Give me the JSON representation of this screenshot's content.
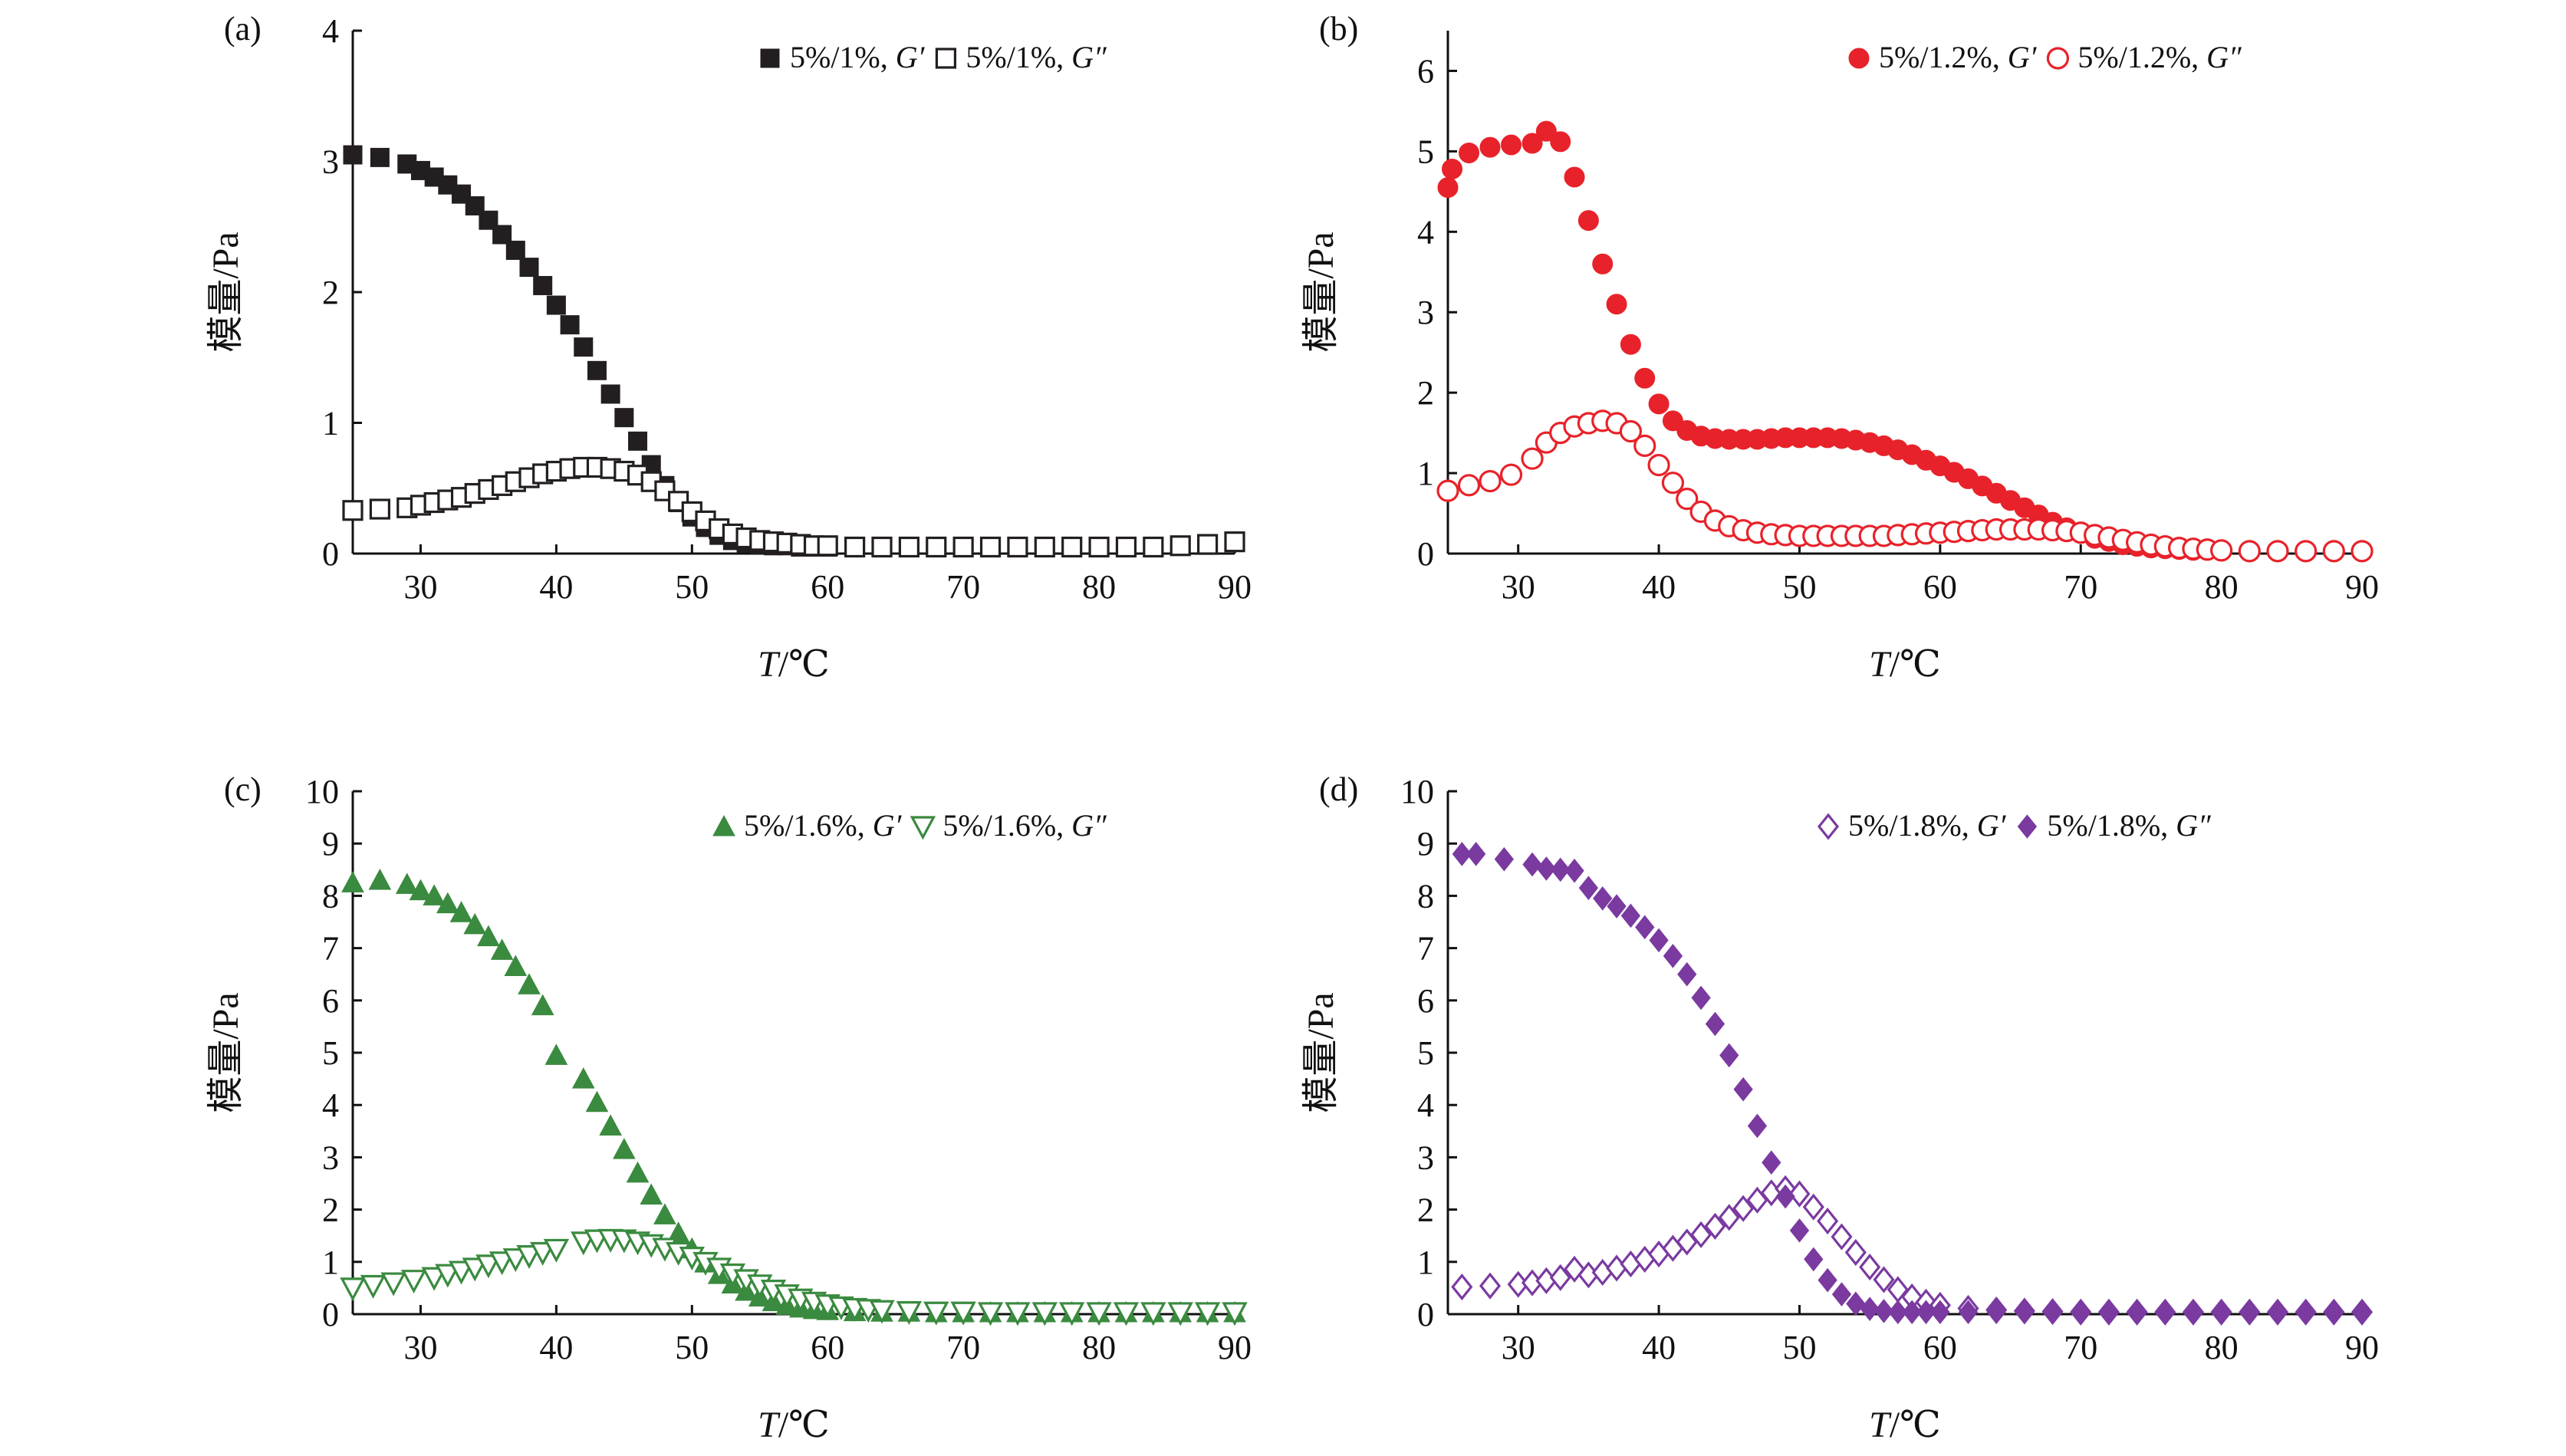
{
  "chart_data": [
    {
      "id": "a",
      "type": "scatter",
      "panel_label": "(a)",
      "xlabel": "T/℃",
      "ylabel": "模量/Pa",
      "xlim": [
        25,
        90
      ],
      "ylim": [
        0,
        4
      ],
      "xticks": [
        30,
        40,
        50,
        60,
        70,
        80,
        90
      ],
      "yticks": [
        0,
        1,
        2,
        3,
        4
      ],
      "grid": false,
      "legend_position": "top-right",
      "series": [
        {
          "name": "5%/1%, G′",
          "color": "#231f20",
          "marker": "square-filled",
          "x": [
            25,
            27,
            29,
            30,
            31,
            32,
            33,
            34,
            35,
            36,
            37,
            38,
            39,
            40,
            41,
            42,
            43,
            44,
            45,
            46,
            47,
            48,
            49,
            50,
            51,
            52,
            53,
            54,
            55,
            56,
            57,
            58,
            59,
            60,
            62,
            64,
            66,
            68,
            70,
            72,
            74,
            76,
            78,
            80,
            82,
            84,
            86,
            88,
            90
          ],
          "y": [
            3.05,
            3.03,
            2.98,
            2.93,
            2.88,
            2.82,
            2.75,
            2.66,
            2.55,
            2.44,
            2.32,
            2.19,
            2.05,
            1.9,
            1.75,
            1.58,
            1.4,
            1.22,
            1.04,
            0.86,
            0.68,
            0.52,
            0.39,
            0.28,
            0.2,
            0.14,
            0.1,
            0.08,
            0.07,
            0.06,
            0.06,
            0.05,
            0.05,
            0.05,
            0.05,
            0.05,
            0.05,
            0.05,
            0.05,
            0.05,
            0.05,
            0.05,
            0.05,
            0.05,
            0.05,
            0.05,
            0.06,
            0.07,
            0.09
          ]
        },
        {
          "name": "5%/1%, G″",
          "color": "#231f20",
          "marker": "square-open",
          "x": [
            25,
            27,
            29,
            30,
            31,
            32,
            33,
            34,
            35,
            36,
            37,
            38,
            39,
            40,
            41,
            42,
            43,
            44,
            45,
            46,
            47,
            48,
            49,
            50,
            51,
            52,
            53,
            54,
            55,
            56,
            57,
            58,
            59,
            60,
            62,
            64,
            66,
            68,
            70,
            72,
            74,
            76,
            78,
            80,
            82,
            84,
            86,
            88,
            90
          ],
          "y": [
            0.33,
            0.34,
            0.35,
            0.37,
            0.39,
            0.41,
            0.43,
            0.46,
            0.49,
            0.52,
            0.55,
            0.58,
            0.61,
            0.63,
            0.65,
            0.66,
            0.66,
            0.65,
            0.63,
            0.6,
            0.55,
            0.48,
            0.4,
            0.32,
            0.25,
            0.19,
            0.15,
            0.12,
            0.1,
            0.09,
            0.08,
            0.07,
            0.06,
            0.06,
            0.05,
            0.05,
            0.05,
            0.05,
            0.05,
            0.05,
            0.05,
            0.05,
            0.05,
            0.05,
            0.05,
            0.05,
            0.06,
            0.07,
            0.09
          ]
        }
      ]
    },
    {
      "id": "b",
      "type": "scatter",
      "panel_label": "(b)",
      "xlabel": "T/℃",
      "ylabel": "模量/Pa",
      "xlim": [
        25,
        90
      ],
      "ylim": [
        0,
        6.5
      ],
      "xticks": [
        30,
        40,
        50,
        60,
        70,
        80,
        90
      ],
      "yticks": [
        0,
        1,
        2,
        3,
        4,
        5,
        6
      ],
      "grid": false,
      "legend_position": "top-right",
      "series": [
        {
          "name": "5%/1.2%, G′",
          "color": "#e8222a",
          "marker": "circle-filled",
          "x": [
            25,
            25.3,
            26.5,
            28,
            29.5,
            31,
            32,
            33,
            34,
            35,
            36,
            37,
            38,
            39,
            40,
            41,
            42,
            43,
            44,
            45,
            46,
            47,
            48,
            49,
            50,
            51,
            52,
            53,
            54,
            55,
            56,
            57,
            58,
            59,
            60,
            61,
            62,
            63,
            64,
            65,
            66,
            67,
            68,
            69,
            70,
            71,
            72,
            73,
            74,
            75,
            76,
            77,
            78,
            79,
            80,
            82,
            84,
            86,
            88,
            90
          ],
          "y": [
            4.55,
            4.78,
            4.98,
            5.05,
            5.08,
            5.1,
            5.25,
            5.12,
            4.68,
            4.14,
            3.6,
            3.1,
            2.6,
            2.18,
            1.86,
            1.65,
            1.53,
            1.46,
            1.43,
            1.42,
            1.42,
            1.42,
            1.43,
            1.44,
            1.44,
            1.44,
            1.44,
            1.43,
            1.41,
            1.38,
            1.34,
            1.29,
            1.23,
            1.16,
            1.09,
            1.01,
            0.93,
            0.84,
            0.75,
            0.66,
            0.57,
            0.48,
            0.39,
            0.32,
            0.25,
            0.19,
            0.15,
            0.11,
            0.09,
            0.07,
            0.06,
            0.05,
            0.04,
            0.04,
            0.03,
            0.03,
            0.03,
            0.03,
            0.03,
            0.03
          ]
        },
        {
          "name": "5%/1.2%, G″",
          "color": "#e8222a",
          "marker": "circle-open",
          "x": [
            25,
            26.5,
            28,
            29.5,
            31,
            32,
            33,
            34,
            35,
            36,
            37,
            38,
            39,
            40,
            41,
            42,
            43,
            44,
            45,
            46,
            47,
            48,
            49,
            50,
            51,
            52,
            53,
            54,
            55,
            56,
            57,
            58,
            59,
            60,
            61,
            62,
            63,
            64,
            65,
            66,
            67,
            68,
            69,
            70,
            71,
            72,
            73,
            74,
            75,
            76,
            77,
            78,
            79,
            80,
            82,
            84,
            86,
            88,
            90
          ],
          "y": [
            0.78,
            0.85,
            0.9,
            0.98,
            1.18,
            1.38,
            1.5,
            1.58,
            1.62,
            1.65,
            1.62,
            1.52,
            1.34,
            1.1,
            0.88,
            0.68,
            0.52,
            0.41,
            0.34,
            0.29,
            0.26,
            0.24,
            0.23,
            0.22,
            0.22,
            0.22,
            0.22,
            0.22,
            0.22,
            0.22,
            0.23,
            0.24,
            0.25,
            0.26,
            0.27,
            0.28,
            0.29,
            0.3,
            0.3,
            0.3,
            0.3,
            0.29,
            0.28,
            0.26,
            0.23,
            0.2,
            0.17,
            0.14,
            0.11,
            0.09,
            0.07,
            0.06,
            0.05,
            0.04,
            0.03,
            0.03,
            0.03,
            0.03,
            0.03
          ]
        }
      ]
    },
    {
      "id": "c",
      "type": "scatter",
      "panel_label": "(c)",
      "xlabel": "T/℃",
      "ylabel": "模量/Pa",
      "xlim": [
        25,
        90
      ],
      "ylim": [
        0,
        10
      ],
      "xticks": [
        30,
        40,
        50,
        60,
        70,
        80,
        90
      ],
      "yticks": [
        0,
        1,
        2,
        3,
        4,
        5,
        6,
        7,
        8,
        9,
        10
      ],
      "grid": false,
      "legend_position": "top-right",
      "series": [
        {
          "name": "5%/1.6%, G′",
          "color": "#3a8a3f",
          "marker": "triangle-up-filled",
          "x": [
            25,
            27,
            29,
            30,
            31,
            32,
            33,
            34,
            35,
            36,
            37,
            38,
            39,
            40,
            42,
            43,
            44,
            45,
            46,
            47,
            48,
            49,
            50,
            51,
            52,
            53,
            54,
            55,
            56,
            57,
            58,
            59,
            60,
            62,
            64,
            66,
            68,
            70,
            72,
            74,
            76,
            78,
            80,
            82,
            84,
            86,
            88,
            90
          ],
          "y": [
            8.25,
            8.3,
            8.22,
            8.1,
            8.0,
            7.85,
            7.68,
            7.45,
            7.22,
            6.96,
            6.65,
            6.3,
            5.9,
            4.95,
            4.5,
            4.05,
            3.6,
            3.15,
            2.7,
            2.28,
            1.9,
            1.55,
            1.25,
            0.98,
            0.76,
            0.58,
            0.44,
            0.33,
            0.24,
            0.17,
            0.12,
            0.09,
            0.07,
            0.05,
            0.04,
            0.04,
            0.03,
            0.03,
            0.03,
            0.03,
            0.03,
            0.03,
            0.03,
            0.03,
            0.03,
            0.03,
            0.03,
            0.03
          ]
        },
        {
          "name": "5%/1.6%, G″",
          "color": "#3a8a3f",
          "marker": "triangle-down-open",
          "x": [
            25,
            26.5,
            28,
            29.5,
            31,
            32,
            33,
            34,
            35,
            36,
            37,
            38,
            39,
            40,
            42,
            43,
            44,
            45,
            46,
            47,
            48,
            49,
            50,
            51,
            52,
            53,
            54,
            55,
            56,
            57,
            58,
            59,
            60,
            61,
            62,
            63,
            64,
            66,
            68,
            70,
            72,
            74,
            76,
            78,
            80,
            82,
            84,
            86,
            88,
            90
          ],
          "y": [
            0.5,
            0.55,
            0.6,
            0.65,
            0.7,
            0.76,
            0.82,
            0.88,
            0.94,
            1.0,
            1.06,
            1.12,
            1.18,
            1.24,
            1.38,
            1.42,
            1.43,
            1.42,
            1.38,
            1.33,
            1.26,
            1.18,
            1.09,
            0.99,
            0.88,
            0.77,
            0.66,
            0.56,
            0.46,
            0.37,
            0.29,
            0.23,
            0.18,
            0.14,
            0.11,
            0.09,
            0.07,
            0.05,
            0.04,
            0.04,
            0.03,
            0.03,
            0.03,
            0.03,
            0.03,
            0.03,
            0.03,
            0.03,
            0.03,
            0.03
          ]
        }
      ]
    },
    {
      "id": "d",
      "type": "scatter",
      "panel_label": "(d)",
      "xlabel": "T/℃",
      "ylabel": "模量/Pa",
      "xlim": [
        25,
        90
      ],
      "ylim": [
        0,
        10
      ],
      "xticks": [
        30,
        40,
        50,
        60,
        70,
        80,
        90
      ],
      "yticks": [
        0,
        1,
        2,
        3,
        4,
        5,
        6,
        7,
        8,
        9,
        10
      ],
      "grid": false,
      "legend_position": "top-right",
      "series": [
        {
          "name": "5%/1.8%, G′",
          "color": "#7a3aa0",
          "marker": "diamond-open",
          "x": [
            26,
            28,
            30,
            31,
            32,
            33,
            34,
            35,
            36,
            37,
            38,
            39,
            40,
            41,
            42,
            43,
            44,
            45,
            46,
            47,
            48,
            49,
            50,
            51,
            52,
            53,
            54,
            55,
            56,
            57,
            58,
            59,
            60,
            62,
            64,
            66,
            68,
            70,
            72,
            74,
            76,
            78,
            80,
            82,
            84,
            86,
            88,
            90
          ],
          "y": [
            0.52,
            0.54,
            0.57,
            0.6,
            0.64,
            0.7,
            0.86,
            0.75,
            0.8,
            0.88,
            0.96,
            1.05,
            1.15,
            1.26,
            1.38,
            1.52,
            1.68,
            1.85,
            2.02,
            2.18,
            2.32,
            2.4,
            2.3,
            2.05,
            1.78,
            1.48,
            1.18,
            0.9,
            0.66,
            0.47,
            0.33,
            0.23,
            0.17,
            0.11,
            0.08,
            0.06,
            0.05,
            0.04,
            0.04,
            0.04,
            0.04,
            0.04,
            0.04,
            0.04,
            0.04,
            0.04,
            0.04,
            0.04
          ]
        },
        {
          "name": "5%/1.8%, G″",
          "color": "#7a3aa0",
          "marker": "diamond-filled",
          "x": [
            26,
            27,
            29,
            31,
            32,
            33,
            34,
            35,
            36,
            37,
            38,
            39,
            40,
            41,
            42,
            43,
            44,
            45,
            46,
            47,
            48,
            49,
            50,
            51,
            52,
            53,
            54,
            55,
            56,
            57,
            58,
            59,
            60,
            62,
            64,
            66,
            68,
            70,
            72,
            74,
            76,
            78,
            80,
            82,
            84,
            86,
            88,
            90
          ],
          "y": [
            8.8,
            8.8,
            8.7,
            8.6,
            8.52,
            8.5,
            8.48,
            8.15,
            7.95,
            7.8,
            7.62,
            7.4,
            7.15,
            6.85,
            6.5,
            6.05,
            5.55,
            4.95,
            4.3,
            3.6,
            2.9,
            2.25,
            1.6,
            1.05,
            0.65,
            0.38,
            0.2,
            0.1,
            0.06,
            0.04,
            0.04,
            0.04,
            0.04,
            0.04,
            0.04,
            0.04,
            0.04,
            0.04,
            0.04,
            0.04,
            0.04,
            0.04,
            0.04,
            0.04,
            0.04,
            0.04,
            0.04,
            0.04
          ]
        }
      ]
    }
  ]
}
